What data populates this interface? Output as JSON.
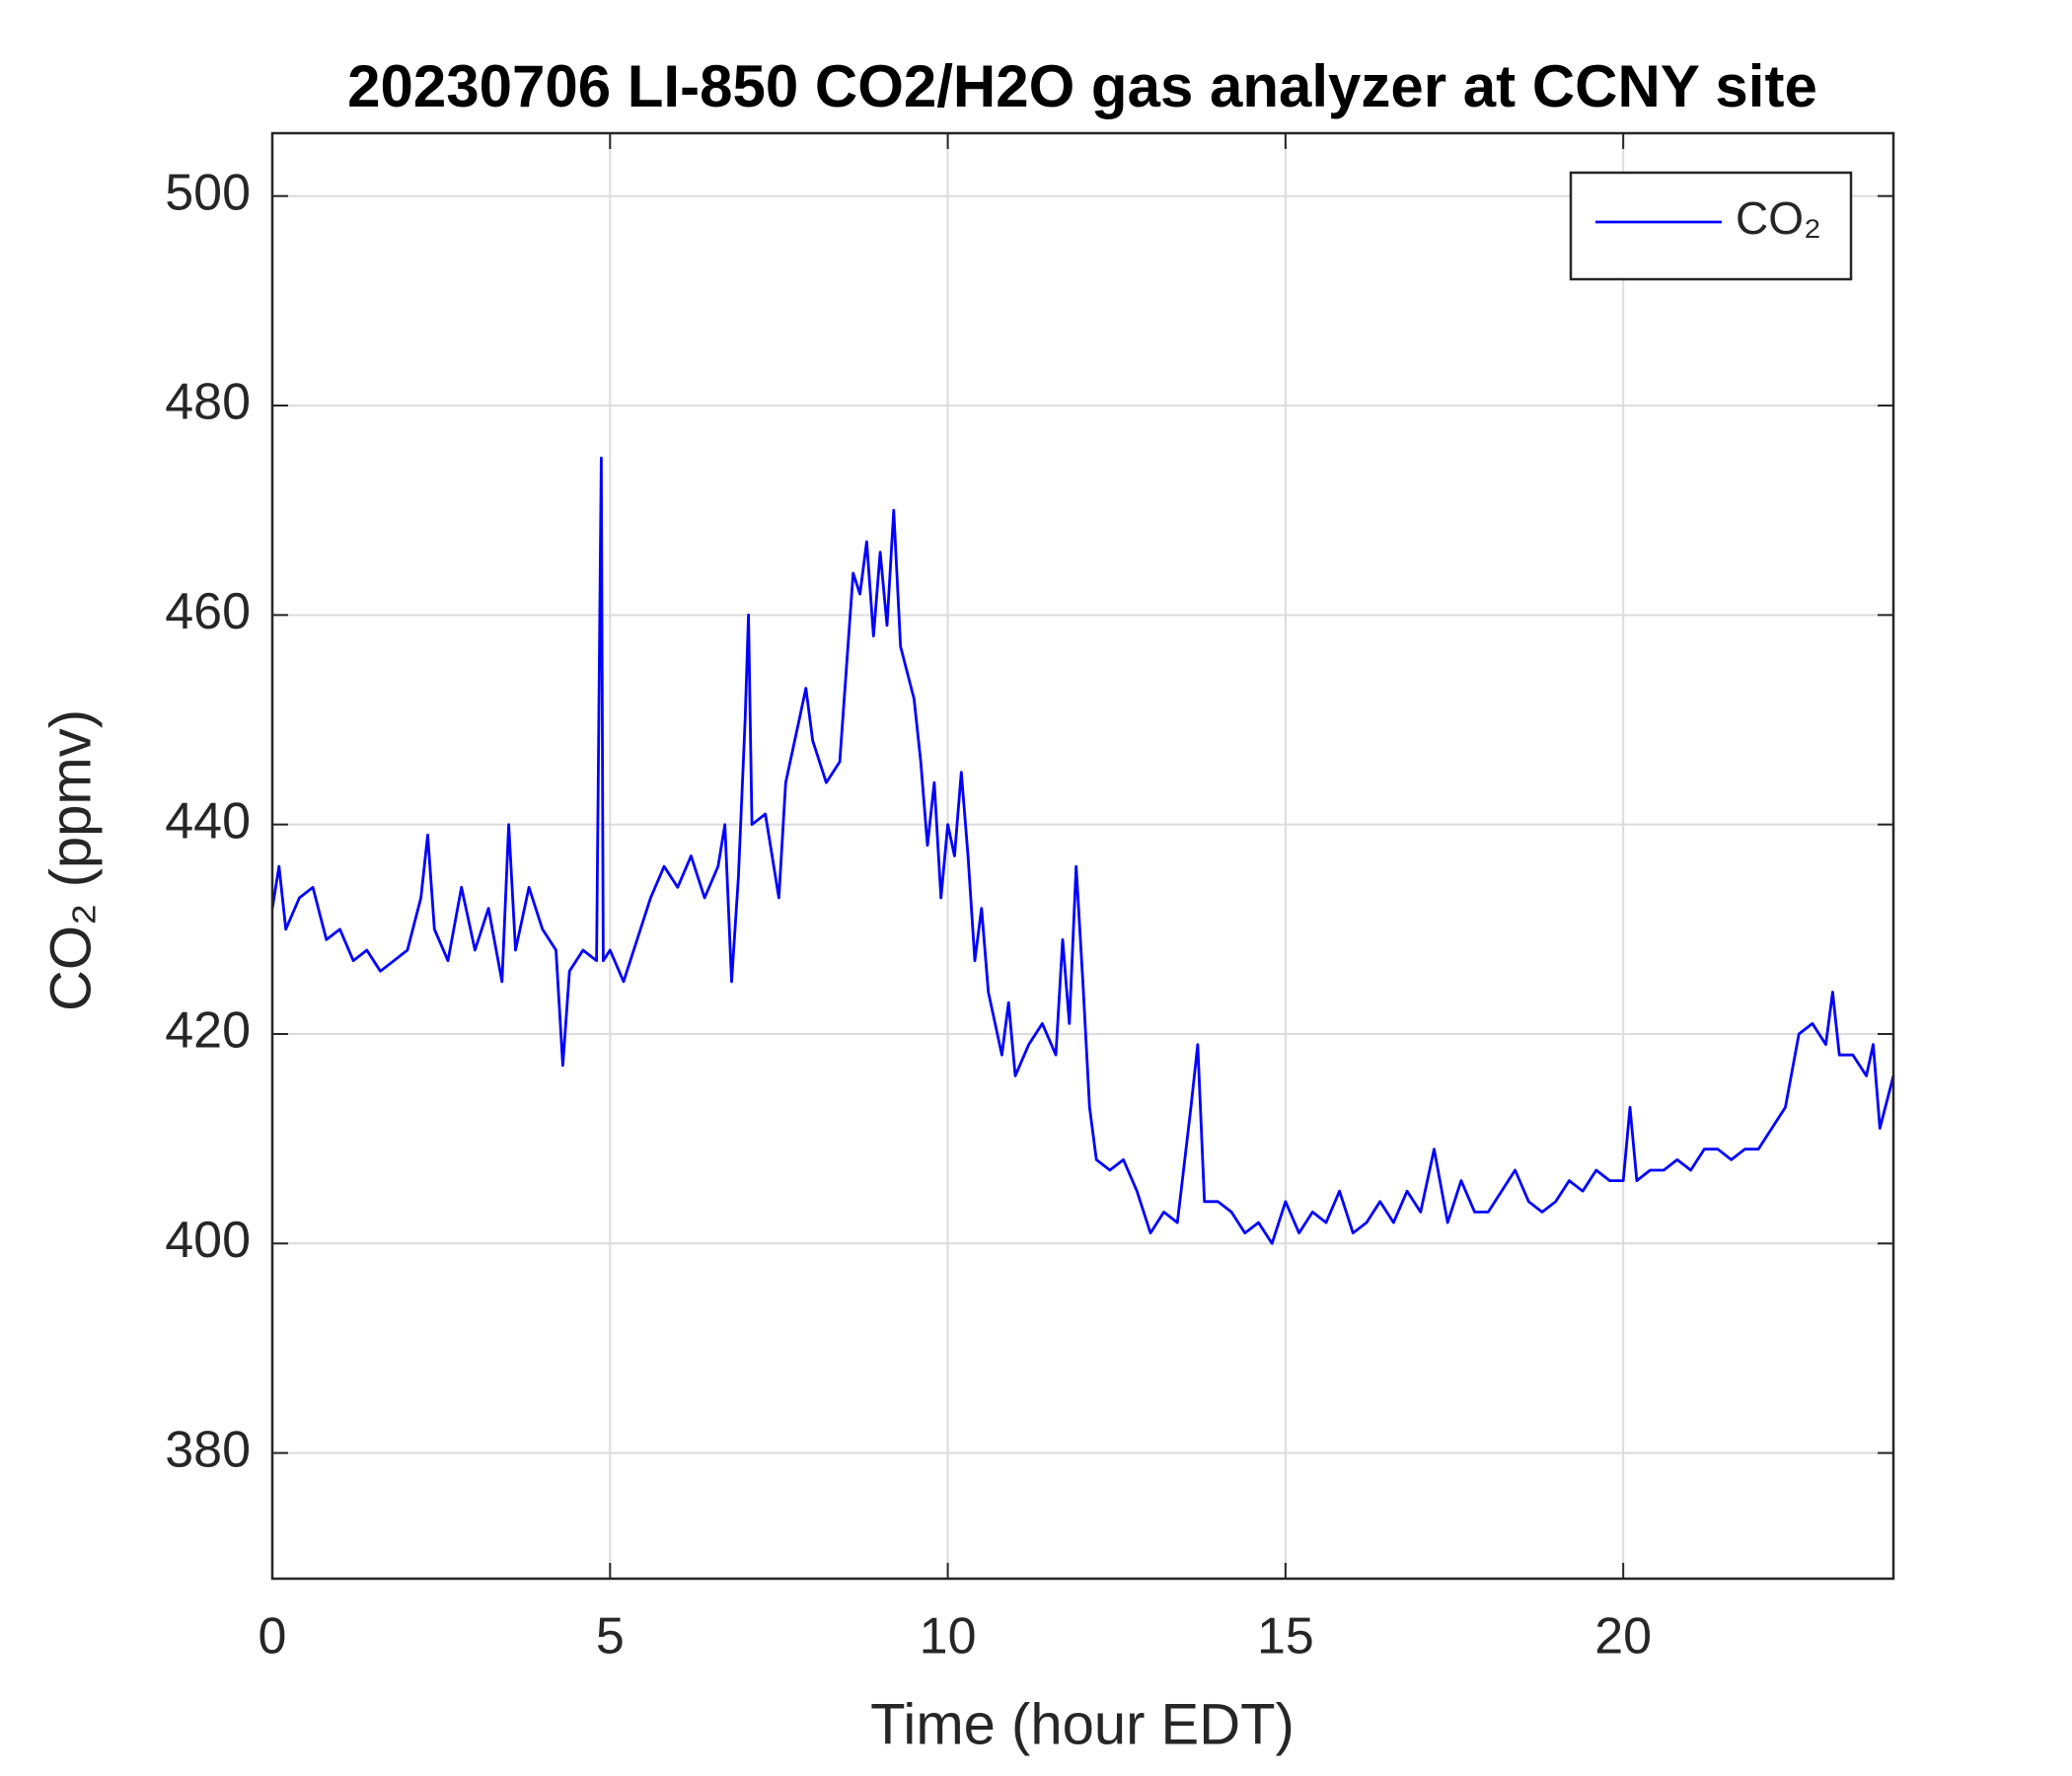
{
  "chart_data": {
    "type": "line",
    "title": "20230706 LI-850 CO2/H2O gas analyzer at CCNY site",
    "xlabel": "Time (hour EDT)",
    "ylabel": "CO₂ (ppmv)",
    "x": [
      0,
      0.1,
      0.2,
      0.4,
      0.6,
      0.8,
      1.0,
      1.2,
      1.4,
      1.6,
      1.8,
      2.0,
      2.2,
      2.3,
      2.4,
      2.6,
      2.8,
      3.0,
      3.2,
      3.4,
      3.5,
      3.6,
      3.8,
      4.0,
      4.2,
      4.3,
      4.4,
      4.6,
      4.8,
      4.87,
      4.9,
      5.0,
      5.2,
      5.4,
      5.6,
      5.8,
      6.0,
      6.2,
      6.4,
      6.6,
      6.7,
      6.8,
      6.9,
      7.0,
      7.05,
      7.1,
      7.3,
      7.5,
      7.6,
      7.8,
      7.9,
      8.0,
      8.2,
      8.4,
      8.5,
      8.6,
      8.7,
      8.8,
      8.9,
      9.0,
      9.1,
      9.2,
      9.3,
      9.5,
      9.6,
      9.7,
      9.8,
      9.9,
      10.0,
      10.1,
      10.2,
      10.3,
      10.4,
      10.5,
      10.6,
      10.8,
      10.9,
      11.0,
      11.2,
      11.4,
      11.6,
      11.7,
      11.8,
      11.9,
      12.0,
      12.1,
      12.2,
      12.4,
      12.6,
      12.8,
      13.0,
      13.2,
      13.4,
      13.6,
      13.7,
      13.8,
      14.0,
      14.2,
      14.4,
      14.6,
      14.8,
      15.0,
      15.2,
      15.4,
      15.6,
      15.8,
      16.0,
      16.2,
      16.4,
      16.6,
      16.8,
      17.0,
      17.2,
      17.4,
      17.6,
      17.8,
      18.0,
      18.2,
      18.4,
      18.6,
      18.8,
      19.0,
      19.2,
      19.4,
      19.6,
      19.8,
      20.0,
      20.1,
      20.2,
      20.4,
      20.6,
      20.8,
      21.0,
      21.2,
      21.4,
      21.6,
      21.8,
      22.0,
      22.2,
      22.4,
      22.6,
      22.8,
      23.0,
      23.1,
      23.2,
      23.4,
      23.6,
      23.7,
      23.8,
      24.0
    ],
    "series": [
      {
        "name": "CO₂",
        "color": "#0000ff",
        "values": [
          432,
          436,
          430,
          433,
          434,
          429,
          430,
          427,
          428,
          426,
          427,
          428,
          433,
          439,
          430,
          427,
          434,
          428,
          432,
          425,
          440,
          428,
          434,
          430,
          428,
          417,
          426,
          428,
          427,
          475,
          427,
          428,
          425,
          429,
          433,
          436,
          434,
          437,
          433,
          436,
          440,
          425,
          435,
          450,
          460,
          440,
          441,
          433,
          444,
          450,
          453,
          448,
          444,
          446,
          455,
          464,
          462,
          467,
          458,
          466,
          459,
          470,
          457,
          452,
          446,
          438,
          444,
          433,
          440,
          437,
          445,
          437,
          427,
          432,
          424,
          418,
          423,
          416,
          419,
          421,
          418,
          429,
          421,
          436,
          425,
          413,
          408,
          407,
          408,
          405,
          401,
          403,
          402,
          413,
          419,
          404,
          404,
          403,
          401,
          402,
          400,
          404,
          401,
          403,
          402,
          405,
          401,
          402,
          404,
          402,
          405,
          403,
          409,
          402,
          406,
          403,
          403,
          405,
          407,
          404,
          403,
          404,
          406,
          405,
          407,
          406,
          406,
          413,
          406,
          407,
          407,
          408,
          407,
          409,
          409,
          408,
          409,
          409,
          411,
          413,
          420,
          421,
          419,
          424,
          418,
          418,
          416,
          419,
          411,
          416
        ]
      }
    ],
    "xlim": [
      0,
      24
    ],
    "xticks": [
      0,
      5,
      10,
      15,
      20
    ],
    "ylim": [
      368,
      506
    ],
    "yticks": [
      380,
      400,
      420,
      440,
      460,
      480,
      500
    ],
    "grid": true,
    "legend": "upper right"
  }
}
